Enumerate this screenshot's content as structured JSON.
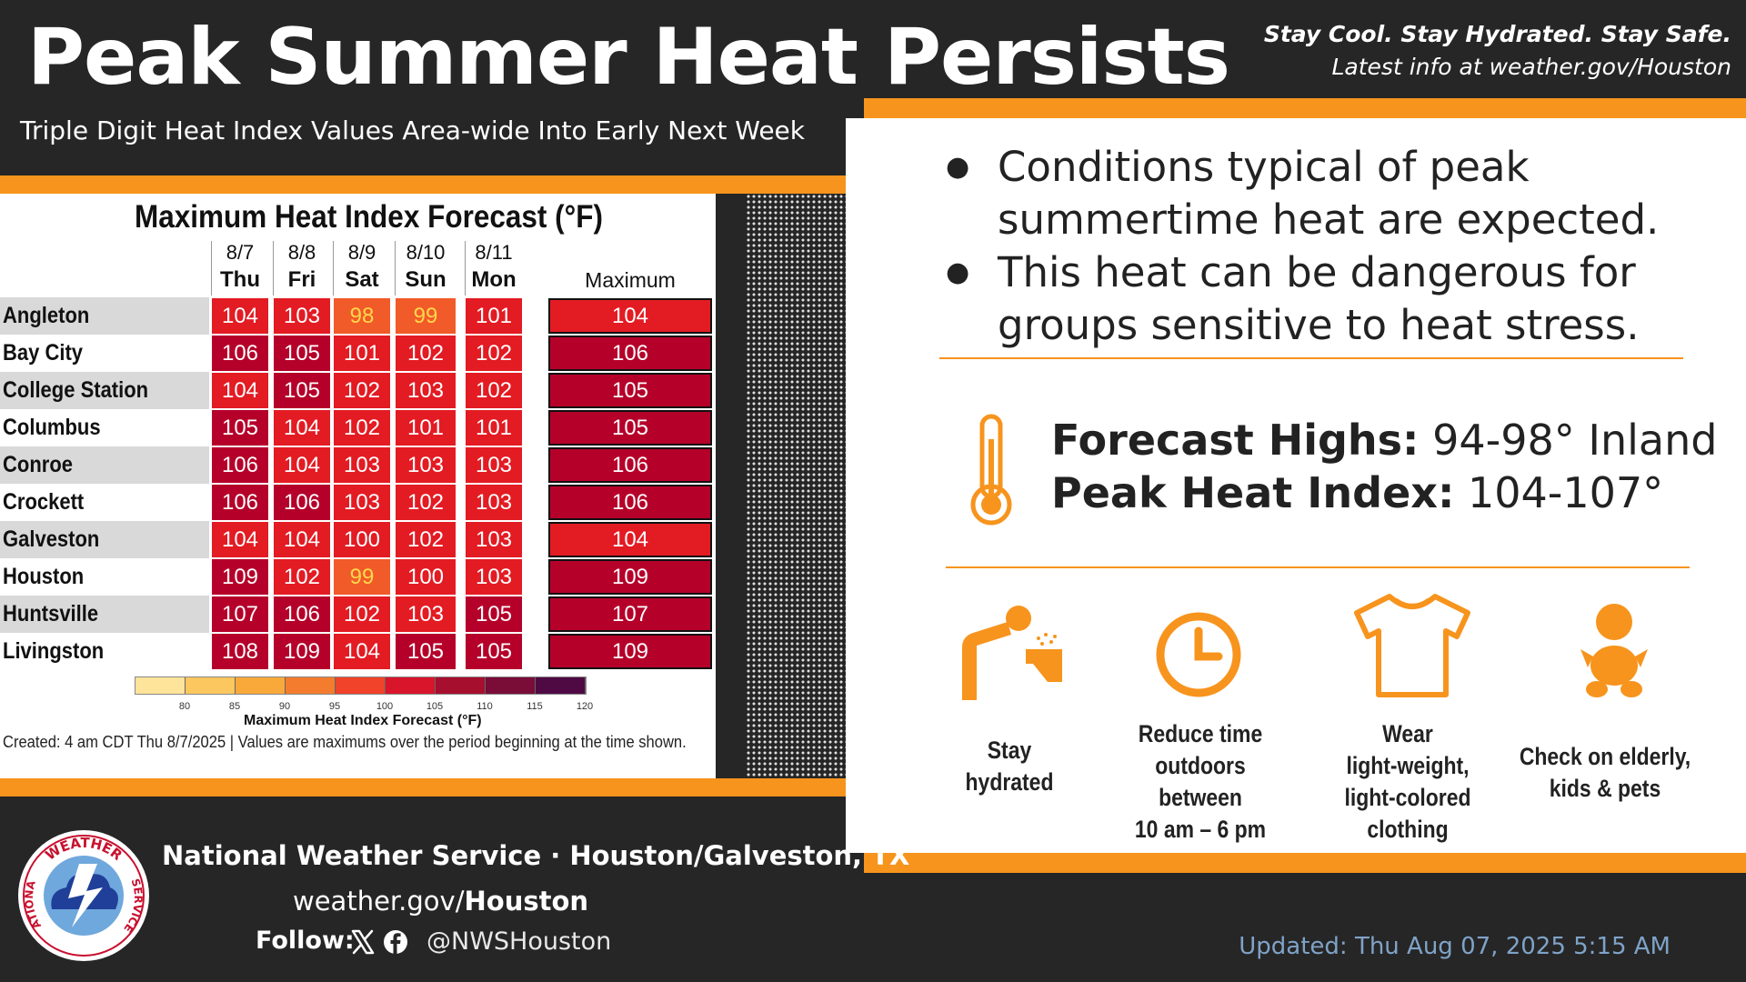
{
  "header": {
    "title": "Peak Summer Heat Persists",
    "subtitle": "Triple Digit Heat Index Values Area-wide Into Early Next Week",
    "tagline_1": "Stay Cool. Stay Hydrated. Stay Safe.",
    "tagline_2": "Latest info at weather.gov/Houston"
  },
  "colors": {
    "accent_orange": "#f7941d",
    "background": "#262626",
    "heat_98_99": "#f15a29",
    "heat_100_104": "#e31b23",
    "heat_105_109": "#b5002a"
  },
  "info": {
    "bullets": [
      "Conditions typical of peak summertime heat are expected.",
      "This heat can be dangerous for groups sensitive to heat stress."
    ],
    "highs_label": "Forecast Highs:",
    "highs_value": "94-98° Inland",
    "heat_index_label": "Peak Heat Index:",
    "heat_index_value": "104-107°"
  },
  "tips": [
    {
      "icon": "drinking-fountain-icon",
      "l1": "Stay",
      "l2": "hydrated",
      "l3": "",
      "l4": ""
    },
    {
      "icon": "clock-icon",
      "l1": "Reduce time",
      "l2": "outdoors between",
      "l3": "10 am – 6 pm",
      "l4": ""
    },
    {
      "icon": "t-shirt-icon",
      "l1": "Wear",
      "l2": "light-weight,",
      "l3": "light-colored",
      "l4": "clothing"
    },
    {
      "icon": "baby-icon",
      "l1": "Check on elderly,",
      "l2": "kids & pets",
      "l3": "",
      "l4": ""
    }
  ],
  "chart_data": {
    "type": "table",
    "title": "Maximum Heat Index Forecast (°F)",
    "dates": [
      "8/7",
      "8/8",
      "8/9",
      "8/10",
      "8/11"
    ],
    "days": [
      "Thu",
      "Fri",
      "Sat",
      "Sun",
      "Mon"
    ],
    "max_header": "Maximum",
    "rows": [
      {
        "city": "Angleton",
        "values": [
          104,
          103,
          98,
          99,
          101
        ],
        "max": 104
      },
      {
        "city": "Bay City",
        "values": [
          106,
          105,
          101,
          102,
          102
        ],
        "max": 106
      },
      {
        "city": "College Station",
        "values": [
          104,
          105,
          102,
          103,
          102
        ],
        "max": 105
      },
      {
        "city": "Columbus",
        "values": [
          105,
          104,
          102,
          101,
          101
        ],
        "max": 105
      },
      {
        "city": "Conroe",
        "values": [
          106,
          104,
          103,
          103,
          103
        ],
        "max": 106
      },
      {
        "city": "Crockett",
        "values": [
          106,
          106,
          103,
          102,
          103
        ],
        "max": 106
      },
      {
        "city": "Galveston",
        "values": [
          104,
          104,
          100,
          102,
          103
        ],
        "max": 104
      },
      {
        "city": "Houston",
        "values": [
          109,
          102,
          99,
          100,
          103
        ],
        "max": 109
      },
      {
        "city": "Huntsville",
        "values": [
          107,
          106,
          102,
          103,
          105
        ],
        "max": 107
      },
      {
        "city": "Livingston",
        "values": [
          108,
          109,
          104,
          105,
          105
        ],
        "max": 109
      }
    ],
    "legend": {
      "ticks": [
        "80",
        "85",
        "90",
        "95",
        "100",
        "105",
        "110",
        "115",
        "120"
      ],
      "colors": [
        "#fde49a",
        "#fcc75e",
        "#f9a93a",
        "#f47c2e",
        "#f0432a",
        "#d8152b",
        "#a70f2e",
        "#7a0c38",
        "#4f0a44"
      ],
      "title": "Maximum Heat Index Forecast (°F)"
    },
    "created": "Created: 4 am CDT Thu 8/7/2025  |  Values are maximums over the period beginning at the time shown."
  },
  "footer": {
    "org": "National Weather Service · Houston/Galveston, TX",
    "url_prefix": "weather.gov/",
    "url_bold": "Houston",
    "follow_label": "Follow:",
    "handle": "@NWSHouston",
    "updated": "Updated: Thu Aug 07, 2025 5:15 AM",
    "logo_text_top": "WEATHER",
    "logo_text_left": "NATIONAL",
    "logo_text_right": "SERVICE"
  }
}
